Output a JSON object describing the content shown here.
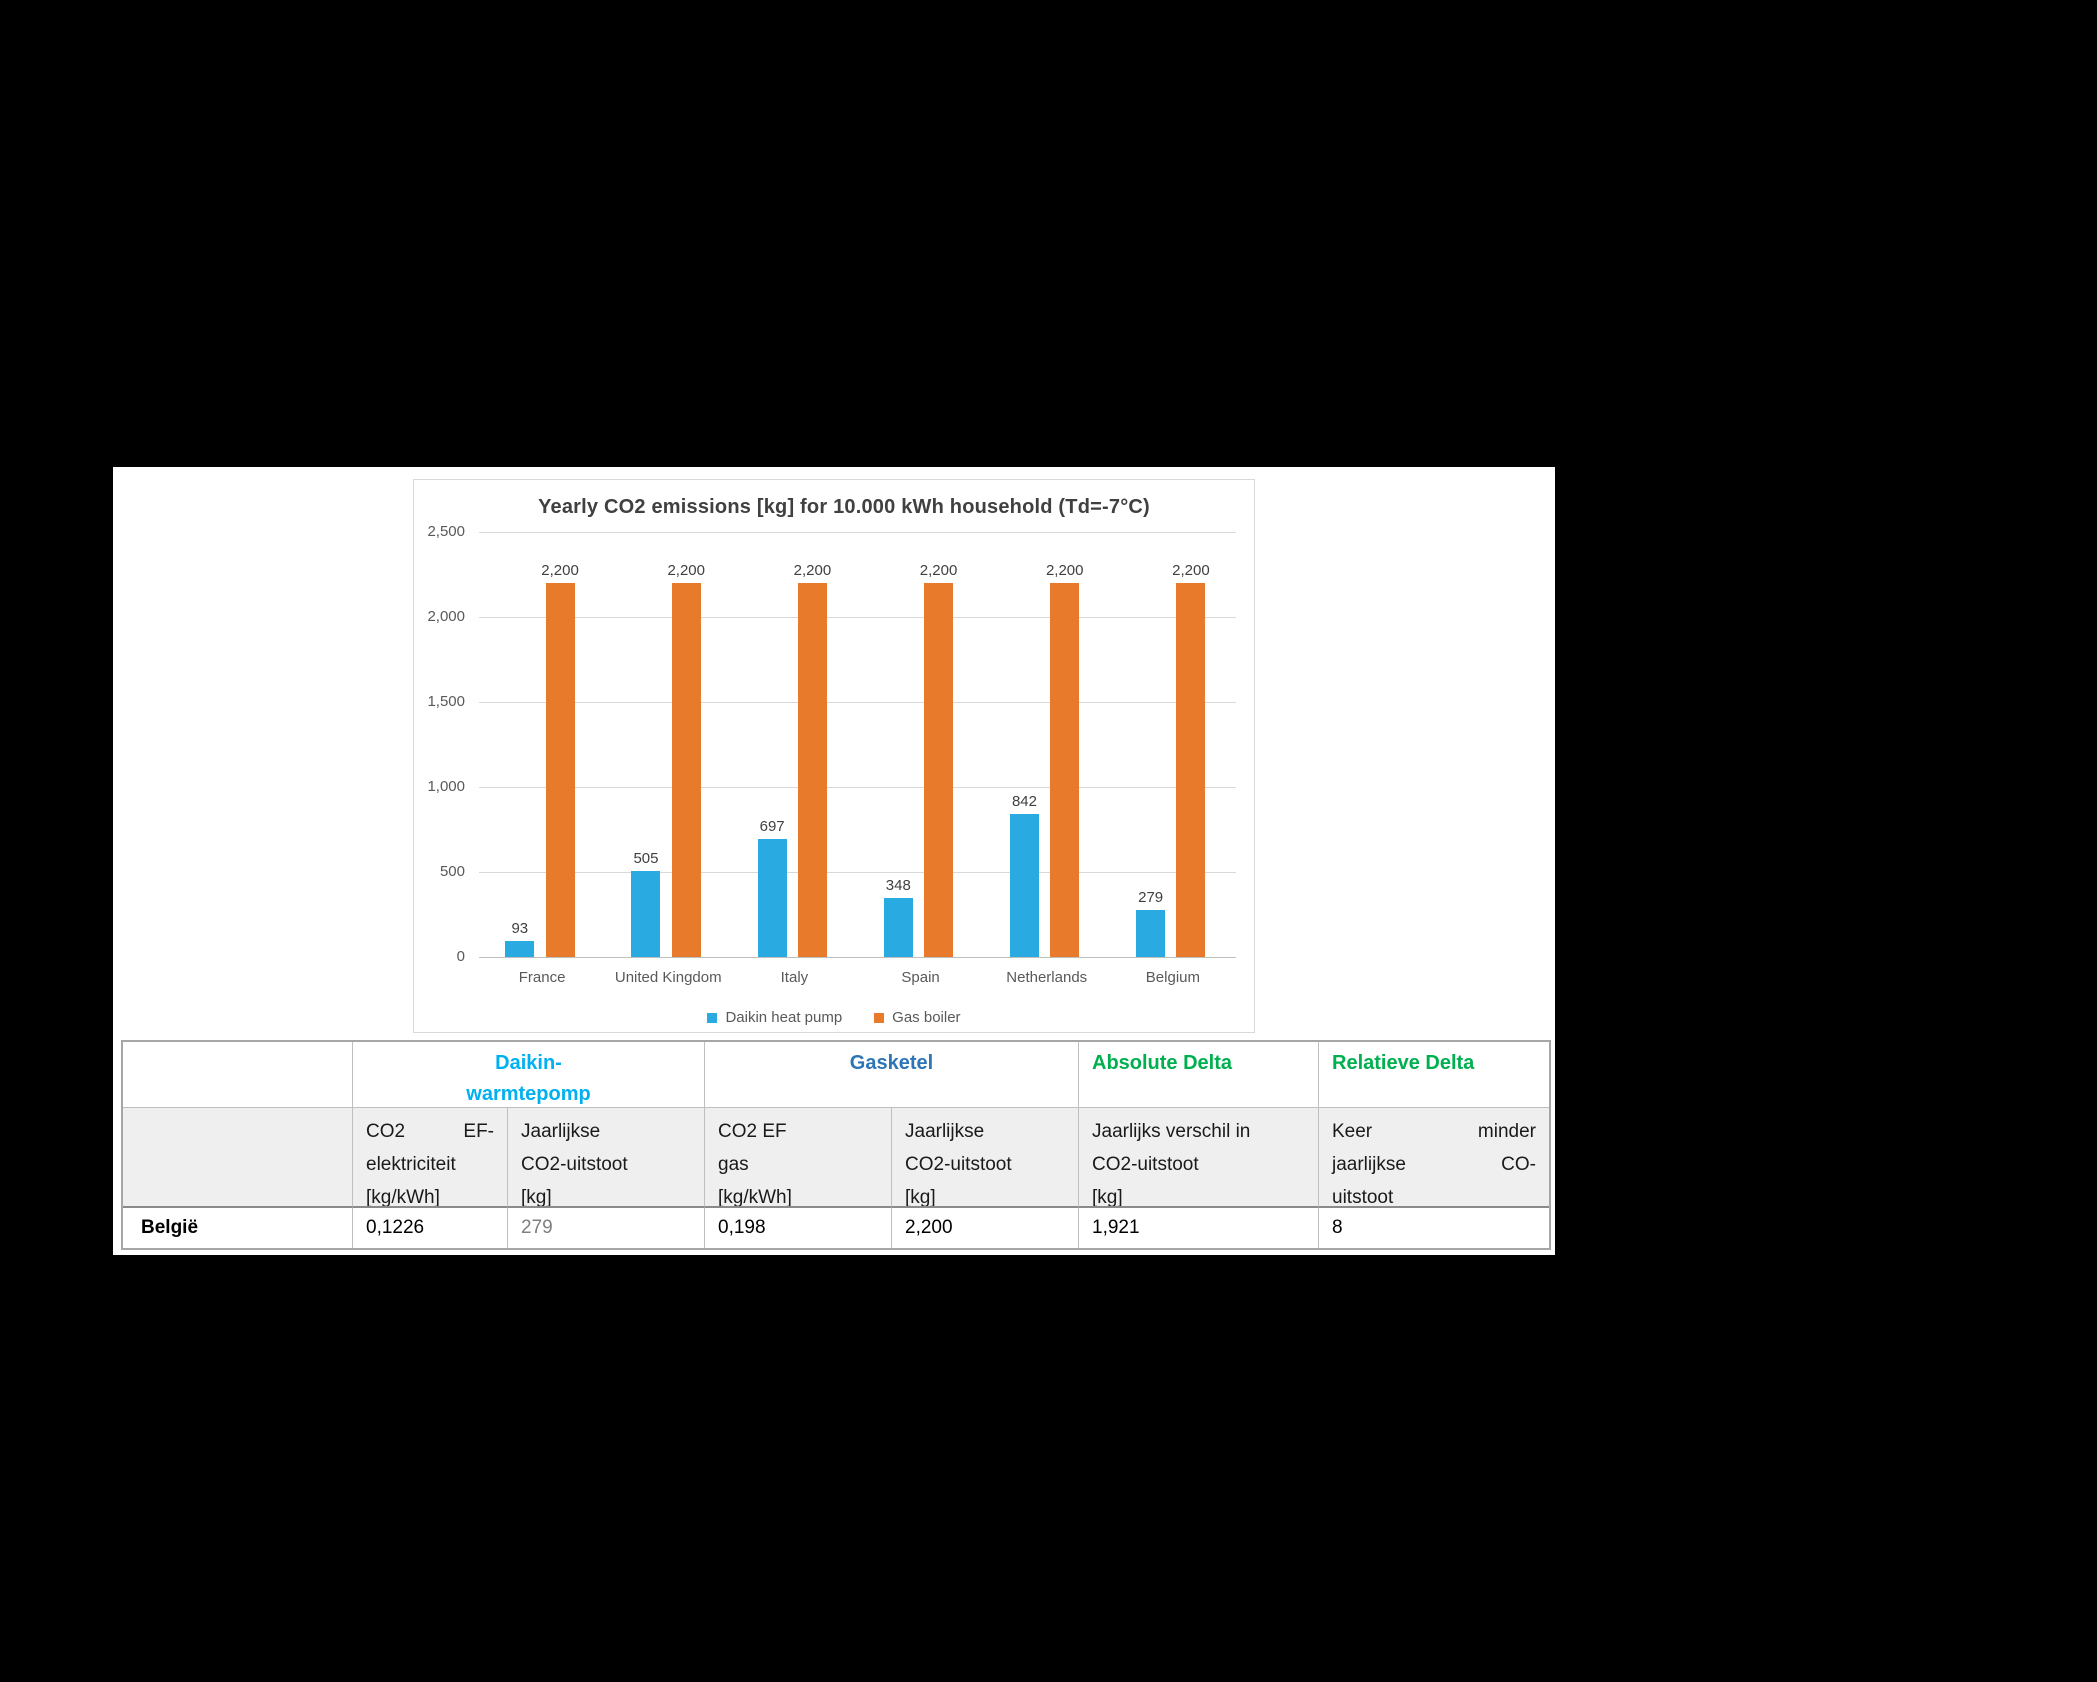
{
  "chart_data": {
    "type": "bar",
    "title": "Yearly CO2 emissions [kg] for 10.000 kWh household (Td=-7°C)",
    "categories": [
      "France",
      "United Kingdom",
      "Italy",
      "Spain",
      "Netherlands",
      "Belgium"
    ],
    "series": [
      {
        "name": "Daikin heat pump",
        "color": "#29ABE2",
        "values": [
          93,
          505,
          697,
          348,
          842,
          279
        ],
        "labels": [
          "93",
          "505",
          "697",
          "348",
          "842",
          "279"
        ]
      },
      {
        "name": "Gas boiler",
        "color": "#E87A2B",
        "values": [
          2200,
          2200,
          2200,
          2200,
          2200,
          2200
        ],
        "labels": [
          "2,200",
          "2,200",
          "2,200",
          "2,200",
          "2,200",
          "2,200"
        ]
      }
    ],
    "ylim": [
      0,
      2500
    ],
    "yticks": [
      {
        "value": 0,
        "label": "0"
      },
      {
        "value": 500,
        "label": "500"
      },
      {
        "value": 1000,
        "label": "1,000"
      },
      {
        "value": 1500,
        "label": "1,500"
      },
      {
        "value": 2000,
        "label": "2,000"
      },
      {
        "value": 2500,
        "label": "2,500"
      }
    ],
    "grid": true,
    "legend_position": "bottom",
    "colors": {
      "grid": "#D9D9D9",
      "axis": "#BFBFBF",
      "tick_text": "#595959",
      "value_label": "#404040",
      "title": "#404040"
    }
  },
  "table": {
    "group_headers": [
      {
        "lines": [],
        "span": 1,
        "align": "center",
        "color": "#000000"
      },
      {
        "lines": [
          "Daikin-",
          "warmtepomp"
        ],
        "span": 2,
        "align": "center",
        "color": "#00B0F0"
      },
      {
        "lines": [
          "Gasketel"
        ],
        "span": 2,
        "align": "center",
        "color": "#2E75B6"
      },
      {
        "lines": [
          "Absolute Delta"
        ],
        "span": 1,
        "align": "left",
        "color": "#00B050"
      },
      {
        "lines": [
          "Relatieve Delta"
        ],
        "span": 1,
        "align": "left",
        "color": "#00B050"
      }
    ],
    "sub_headers": [
      {
        "lines": []
      },
      {
        "lines": [
          [
            "CO2",
            "EF-"
          ],
          [
            "elektriciteit"
          ],
          [
            "[kg/kWh]"
          ]
        ]
      },
      {
        "lines": [
          [
            "Jaarlijkse"
          ],
          [
            "CO2-uitstoot"
          ],
          [
            "[kg]"
          ]
        ]
      },
      {
        "lines": [
          [
            "CO2 EF"
          ],
          [
            "gas"
          ],
          [
            "[kg/kWh]"
          ]
        ]
      },
      {
        "lines": [
          [
            "Jaarlijkse"
          ],
          [
            "CO2-uitstoot"
          ],
          [
            "[kg]"
          ]
        ]
      },
      {
        "lines": [
          [
            "Jaarlijks verschil in"
          ],
          [
            "CO2-uitstoot"
          ],
          [
            "[kg]"
          ]
        ]
      },
      {
        "lines": [
          [
            "Keer",
            "minder"
          ],
          [
            "jaarlijkse",
            "CO-"
          ],
          [
            "uitstoot"
          ]
        ]
      }
    ],
    "rows": [
      {
        "label": "België",
        "values": [
          {
            "text": "0,1226",
            "muted": false
          },
          {
            "text": "279",
            "muted": true
          },
          {
            "text": "0,198",
            "muted": false
          },
          {
            "text": "2,200",
            "muted": false
          },
          {
            "text": "1,921",
            "muted": false
          },
          {
            "text": "8",
            "muted": false
          }
        ]
      }
    ],
    "muted_color": "#7F7F7F"
  }
}
